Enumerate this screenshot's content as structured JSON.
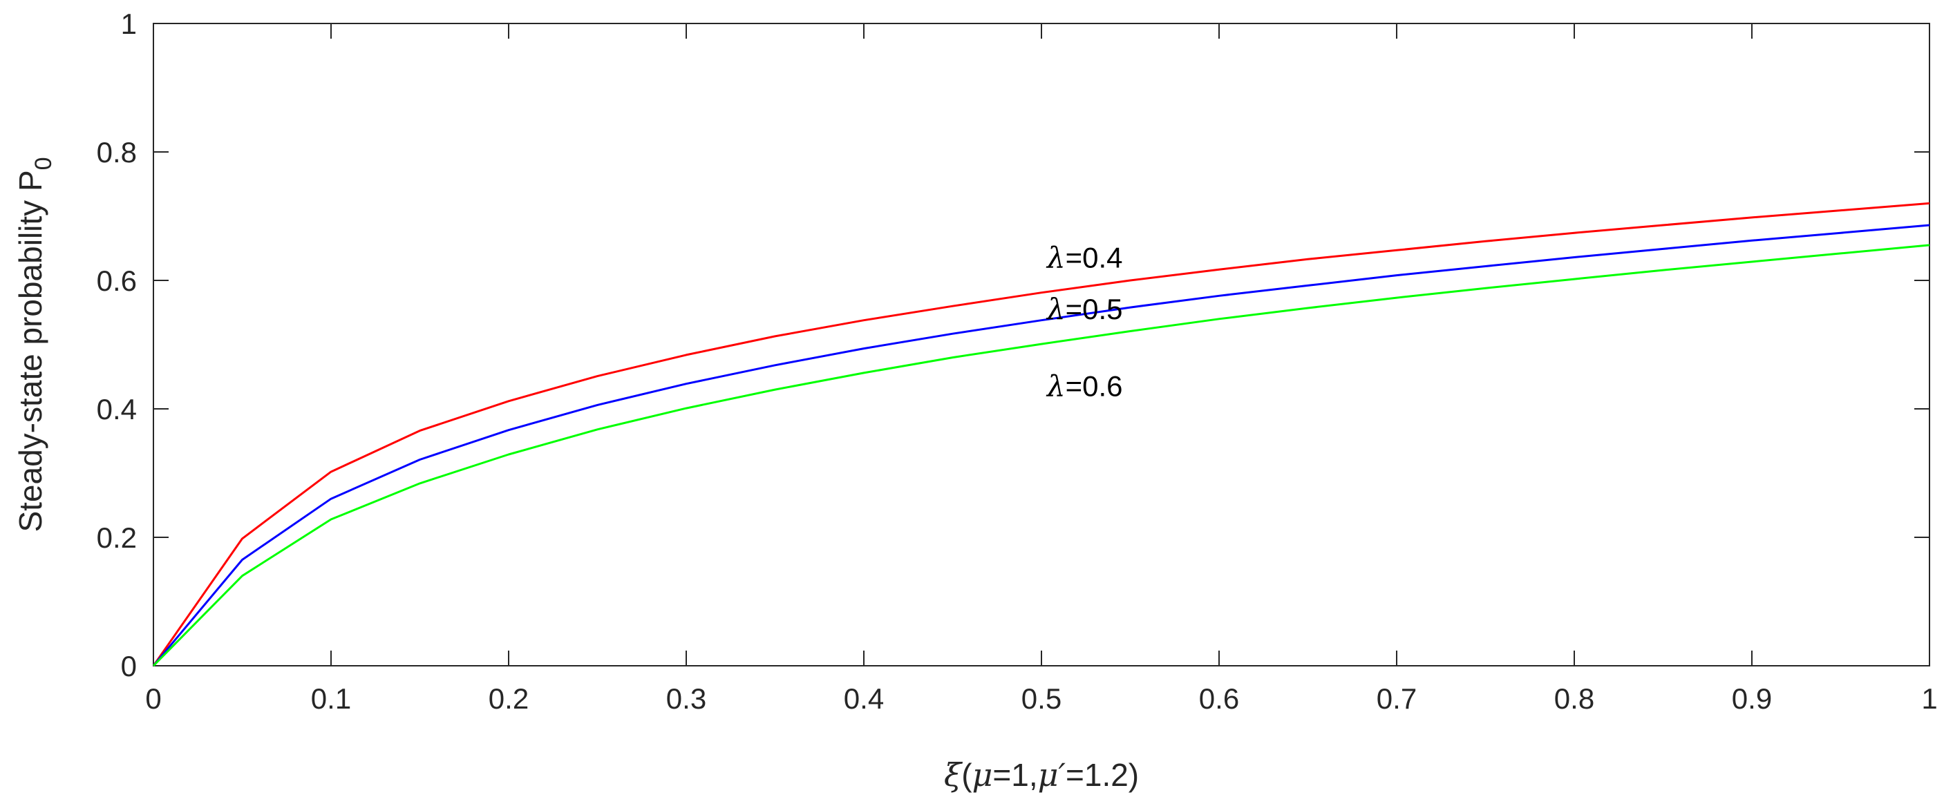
{
  "chart_data": {
    "type": "line",
    "xlim": [
      0,
      1
    ],
    "ylim": [
      0,
      1
    ],
    "xticks": [
      0,
      0.1,
      0.2,
      0.3,
      0.4,
      0.5,
      0.6,
      0.7,
      0.8,
      0.9,
      1
    ],
    "xtick_labels": [
      "0",
      "0.1",
      "0.2",
      "0.3",
      "0.4",
      "0.5",
      "0.6",
      "0.7",
      "0.8",
      "0.9",
      "1"
    ],
    "yticks": [
      0,
      0.2,
      0.4,
      0.6,
      0.8,
      1
    ],
    "ytick_labels": [
      "0",
      "0.2",
      "0.4",
      "0.6",
      "0.8",
      "1"
    ],
    "grid": false,
    "xlabel": {
      "sym1": "ξ",
      "t1": "(",
      "sym2": "μ",
      "t2": "=1,",
      "sym3": "μ′",
      "t3": "=1.2)"
    },
    "ylabel": {
      "main": "Steady-state probability P",
      "sub": "0"
    },
    "x": [
      0,
      0.05,
      0.1,
      0.15,
      0.2,
      0.25,
      0.3,
      0.35,
      0.4,
      0.45,
      0.5,
      0.55,
      0.6,
      0.65,
      0.7,
      0.75,
      0.8,
      0.85,
      0.9,
      0.95,
      1
    ],
    "series": [
      {
        "color": "#ff0000",
        "values": [
          0,
          0.198,
          0.302,
          0.366,
          0.412,
          0.451,
          0.484,
          0.513,
          0.538,
          0.56,
          0.581,
          0.6,
          0.617,
          0.633,
          0.647,
          0.661,
          0.674,
          0.686,
          0.698,
          0.709,
          0.72
        ],
        "annotation": {
          "symbol": "λ",
          "text": "=0.4",
          "x": 0.5,
          "y": 0.635
        }
      },
      {
        "color": "#0000ff",
        "values": [
          0,
          0.165,
          0.26,
          0.321,
          0.367,
          0.406,
          0.439,
          0.468,
          0.494,
          0.517,
          0.538,
          0.558,
          0.576,
          0.592,
          0.608,
          0.622,
          0.636,
          0.649,
          0.662,
          0.674,
          0.686
        ],
        "annotation": {
          "symbol": "λ",
          "text": "=0.5",
          "x": 0.5,
          "y": 0.555
        }
      },
      {
        "color": "#00ff00",
        "values": [
          0,
          0.14,
          0.228,
          0.284,
          0.329,
          0.368,
          0.401,
          0.43,
          0.456,
          0.48,
          0.501,
          0.521,
          0.54,
          0.557,
          0.573,
          0.588,
          0.602,
          0.616,
          0.629,
          0.642,
          0.655
        ],
        "annotation": {
          "symbol": "λ",
          "text": "=0.6",
          "x": 0.5,
          "y": 0.435
        }
      }
    ]
  }
}
